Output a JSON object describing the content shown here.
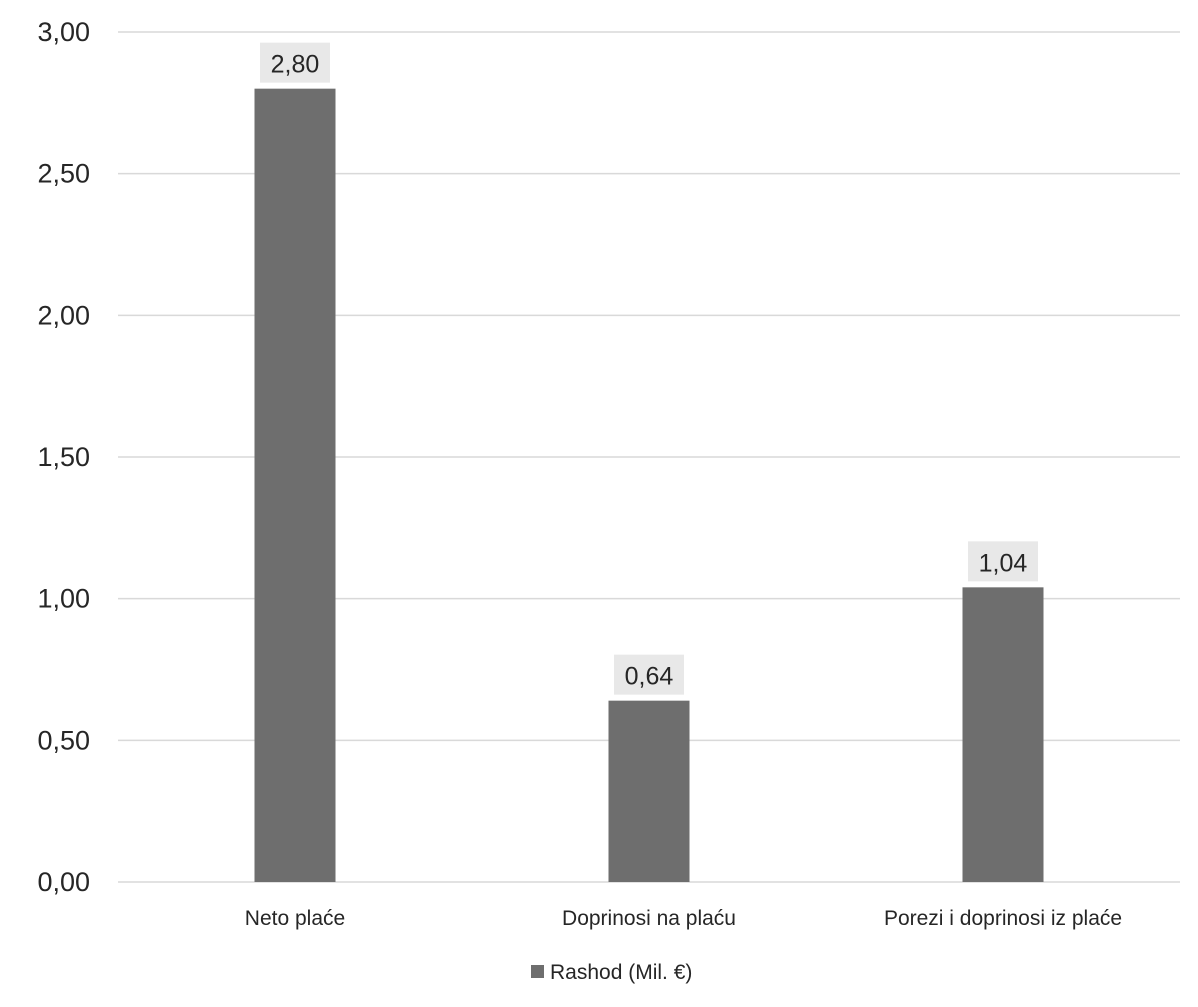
{
  "chart_data": {
    "type": "bar",
    "categories": [
      "Neto plaće",
      "Doprinosi na plaću",
      "Porezi i doprinosi iz plaće"
    ],
    "series": [
      {
        "name": "Rashod (Mil. €)",
        "values": [
          2.8,
          0.64,
          1.04
        ],
        "value_labels": [
          "2,80",
          "0,64",
          "1,04"
        ],
        "color": "#6e6e6e"
      }
    ],
    "y_ticks": [
      0,
      0.5,
      1,
      1.5,
      2,
      2.5,
      3
    ],
    "y_tick_labels": [
      "0,00",
      "0,50",
      "1,00",
      "1,50",
      "2,00",
      "2,50",
      "3,00"
    ],
    "ylim": [
      0,
      3
    ],
    "grid": true,
    "legend_position": "bottom",
    "colors": {
      "bar": "#6e6e6e",
      "grid": "#d9d9d9",
      "text": "#262626",
      "label_bg": "#e8e8e8"
    }
  }
}
